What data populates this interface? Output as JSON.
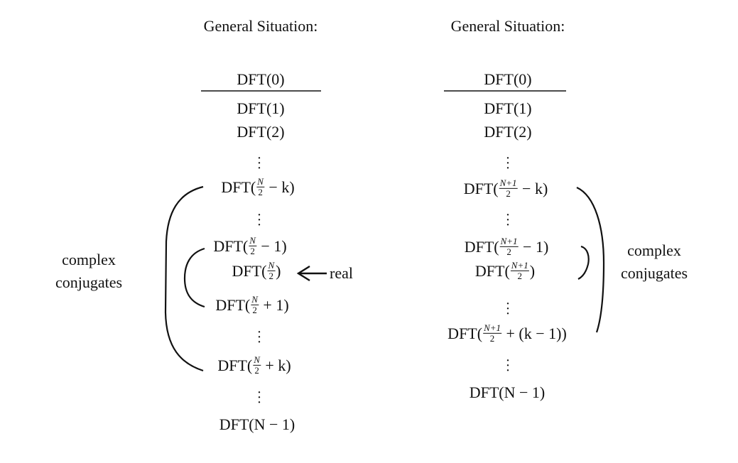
{
  "left": {
    "title": "General Situation:",
    "rows": [
      {
        "pre": "DFT(0)",
        "num": "",
        "den": "",
        "post": ""
      },
      {
        "pre": "DFT(1)",
        "num": "",
        "den": "",
        "post": ""
      },
      {
        "pre": "DFT(2)",
        "num": "",
        "den": "",
        "post": ""
      },
      {
        "pre": "DFT(",
        "num": "N",
        "den": "2",
        "post": " − k)"
      },
      {
        "pre": "DFT(",
        "num": "N",
        "den": "2",
        "post": " − 1)"
      },
      {
        "pre": "DFT(",
        "num": "N",
        "den": "2",
        "post": ")"
      },
      {
        "pre": "DFT(",
        "num": "N",
        "den": "2",
        "post": " + 1)"
      },
      {
        "pre": "DFT(",
        "num": "N",
        "den": "2",
        "post": " + k)"
      },
      {
        "pre": "DFT(N − 1)",
        "num": "",
        "den": "",
        "post": ""
      }
    ],
    "label_line1": "complex",
    "label_line2": "conjugates",
    "real_label": "real"
  },
  "right": {
    "title": "General Situation:",
    "rows": [
      {
        "pre": "DFT(0)",
        "num": "",
        "den": "",
        "post": ""
      },
      {
        "pre": "DFT(1)",
        "num": "",
        "den": "",
        "post": ""
      },
      {
        "pre": "DFT(2)",
        "num": "",
        "den": "",
        "post": ""
      },
      {
        "pre": "DFT(",
        "num": "N+1",
        "den": "2",
        "post": " − k)"
      },
      {
        "pre": "DFT(",
        "num": "N+1",
        "den": "2",
        "post": " − 1)"
      },
      {
        "pre": "DFT(",
        "num": "N+1",
        "den": "2",
        "post": ")"
      },
      {
        "pre": "DFT(",
        "num": "N+1",
        "den": "2",
        "post": " + (k − 1))"
      },
      {
        "pre": "DFT(N − 1)",
        "num": "",
        "den": "",
        "post": ""
      }
    ],
    "label_line1": "complex",
    "label_line2": "conjugates"
  }
}
